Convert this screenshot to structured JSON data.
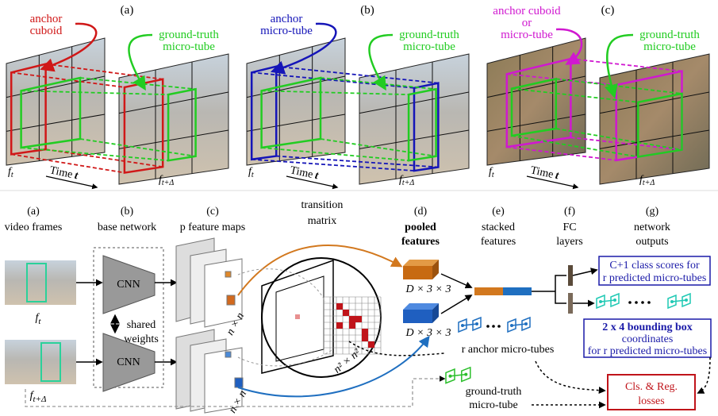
{
  "panels": [
    {
      "label": "(a)",
      "anchor_label": [
        "anchor",
        "cuboid"
      ],
      "gt_label": [
        "ground-truth",
        "micro-tube"
      ],
      "frame_start": {
        "base": "f",
        "sub": "t"
      },
      "time_label": {
        "text": "Time",
        "var": "t"
      },
      "frame_end": {
        "base": "f",
        "sub": "t+Δ"
      }
    },
    {
      "label": "(b)",
      "anchor_label": [
        "anchor",
        "micro-tube"
      ],
      "gt_label": [
        "ground-truth",
        "micro-tube"
      ],
      "frame_start": {
        "base": "f",
        "sub": "t"
      },
      "time_label": {
        "text": "Time",
        "var": "t"
      },
      "frame_end": {
        "base": "f",
        "sub": "t+Δ"
      }
    },
    {
      "label": "(c)",
      "anchor_label": [
        "anchor cuboid",
        "or",
        "micro-tube"
      ],
      "gt_label": [
        "ground-truth",
        "micro-tube"
      ],
      "frame_start": {
        "base": "f",
        "sub": "t"
      },
      "time_label": {
        "text": "Time",
        "var": "t"
      },
      "frame_end": {
        "base": "f",
        "sub": "t+Δ"
      }
    }
  ],
  "pipeline": {
    "columns": [
      {
        "letter": "(a)",
        "title": [
          "video frames"
        ]
      },
      {
        "letter": "(b)",
        "title": [
          "base network"
        ]
      },
      {
        "letter": "(c)",
        "title": [
          "p feature maps"
        ]
      },
      {
        "letter": "(d)",
        "title": [
          "pooled",
          "features"
        ]
      },
      {
        "letter": "(e)",
        "title": [
          "stacked",
          "features"
        ]
      },
      {
        "letter": "(f)",
        "title": [
          "FC",
          "layers"
        ]
      },
      {
        "letter": "(g)",
        "title": [
          "network",
          "outputs"
        ]
      }
    ],
    "transition_matrix": [
      "transition",
      "matrix"
    ],
    "frame_labels": [
      {
        "base": "f",
        "sub": "t"
      },
      {
        "base": "f",
        "sub": "t+Δ"
      }
    ],
    "cnn": [
      "CNN",
      "CNN"
    ],
    "shared_weights": [
      "shared",
      "weights"
    ],
    "grid_size": [
      "n × n",
      "n × n"
    ],
    "matrix_size": "n² × n²",
    "pooled_size": [
      "D × 3 × 3",
      "D × 3 × 3"
    ],
    "class_output": [
      "C+1 class scores for",
      "r predicted micro-tubes"
    ],
    "box_output": [
      "2 x 4 bounding box",
      "coordinates",
      "for r predicted micro-tubes"
    ],
    "anchor_tubes": "r anchor micro-tubes",
    "gt_tube": [
      "ground-truth",
      "micro-tube"
    ],
    "loss": [
      "Cls. & Reg.",
      "losses"
    ]
  }
}
